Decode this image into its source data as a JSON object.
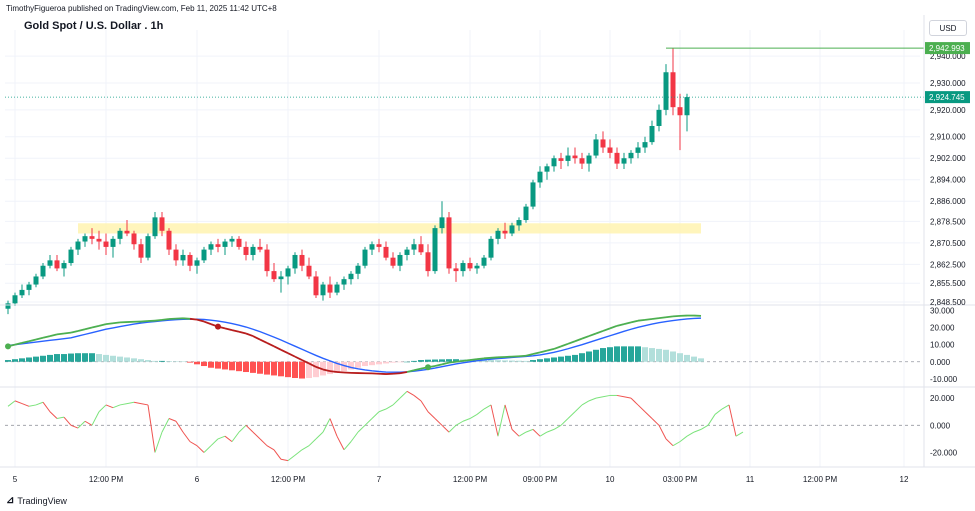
{
  "header": {
    "publisher_line": "TimothyFigueroa published on TradingView.com, Feb 11, 2025 11:42 UTC+8",
    "title": "Gold Spot / U.S. Dollar . 1h",
    "currency_button": "USD"
  },
  "footer": {
    "brand": "TradingView"
  },
  "colors": {
    "up": "#089981",
    "down": "#f23645",
    "grid": "#f0f3fa",
    "highlight": "#fff3b0",
    "macd_line": "#4caf50",
    "signal_line": "#2962ff",
    "macd_red_line": "#b71c1c",
    "osc_up": "#7be37b",
    "osc_down": "#ef5350"
  },
  "chart_data": [
    {
      "type": "candlestick",
      "title": "Gold Spot / U.S. Dollar . 1h",
      "ylim": [
        2848.5,
        2946
      ],
      "y_ticks": [
        "2,940.000",
        "2,930.000",
        "2,920.000",
        "2,910.000",
        "2,902.000",
        "2,894.000",
        "2,886.000",
        "2,878.500",
        "2,870.500",
        "2,862.500",
        "2,855.500",
        "2,848.500"
      ],
      "y_tick_values": [
        2940,
        2930,
        2920,
        2910,
        2902,
        2894,
        2886,
        2878.5,
        2870.5,
        2862.5,
        2855.5,
        2848.5
      ],
      "last_price_label": "2,924.745",
      "last_price": 2924.745,
      "high_label": "2,942.993",
      "high_price": 2942.993,
      "highlight_zone": {
        "from": 2874,
        "to": 2877.8,
        "start_index": 10,
        "end_index": 99
      },
      "ohlc": [
        [
          2846,
          2849,
          2844,
          2848
        ],
        [
          2848,
          2852,
          2847,
          2851
        ],
        [
          2851,
          2855,
          2850,
          2853
        ],
        [
          2853,
          2856,
          2851,
          2855
        ],
        [
          2855,
          2859,
          2854,
          2858
        ],
        [
          2858,
          2863,
          2857,
          2862
        ],
        [
          2862,
          2866,
          2861,
          2864
        ],
        [
          2864,
          2866,
          2860,
          2861
        ],
        [
          2861,
          2864,
          2858,
          2863
        ],
        [
          2863,
          2869,
          2862,
          2868
        ],
        [
          2868,
          2872,
          2866,
          2871
        ],
        [
          2871,
          2874,
          2869,
          2873
        ],
        [
          2873,
          2876,
          2870,
          2872
        ],
        [
          2872,
          2875,
          2868,
          2871
        ],
        [
          2871,
          2874,
          2866,
          2869
        ],
        [
          2869,
          2873,
          2865,
          2872
        ],
        [
          2872,
          2876,
          2870,
          2875
        ],
        [
          2875,
          2879,
          2873,
          2874
        ],
        [
          2874,
          2875,
          2868,
          2870
        ],
        [
          2870,
          2872,
          2863,
          2865
        ],
        [
          2865,
          2874,
          2864,
          2873
        ],
        [
          2873,
          2882,
          2872,
          2880
        ],
        [
          2880,
          2882,
          2873,
          2875
        ],
        [
          2875,
          2876,
          2866,
          2868
        ],
        [
          2868,
          2870,
          2862,
          2864
        ],
        [
          2864,
          2868,
          2862,
          2866
        ],
        [
          2866,
          2867,
          2860,
          2862
        ],
        [
          2862,
          2865,
          2859,
          2864
        ],
        [
          2864,
          2869,
          2863,
          2868
        ],
        [
          2868,
          2871,
          2866,
          2870
        ],
        [
          2870,
          2872,
          2867,
          2869
        ],
        [
          2869,
          2872,
          2866,
          2871
        ],
        [
          2871,
          2873,
          2869,
          2872
        ],
        [
          2872,
          2873,
          2868,
          2869
        ],
        [
          2869,
          2871,
          2864,
          2866
        ],
        [
          2866,
          2870,
          2864,
          2869
        ],
        [
          2869,
          2872,
          2867,
          2868
        ],
        [
          2868,
          2870,
          2858,
          2860
        ],
        [
          2860,
          2863,
          2856,
          2857
        ],
        [
          2857,
          2860,
          2852,
          2858
        ],
        [
          2858,
          2862,
          2855,
          2861
        ],
        [
          2861,
          2867,
          2859,
          2866
        ],
        [
          2866,
          2868,
          2860,
          2862
        ],
        [
          2862,
          2865,
          2857,
          2858
        ],
        [
          2858,
          2860,
          2850,
          2851
        ],
        [
          2851,
          2856,
          2849,
          2855
        ],
        [
          2855,
          2858,
          2850,
          2852
        ],
        [
          2852,
          2856,
          2851,
          2855
        ],
        [
          2855,
          2858,
          2853,
          2857
        ],
        [
          2857,
          2860,
          2855,
          2859
        ],
        [
          2859,
          2863,
          2857,
          2862
        ],
        [
          2862,
          2869,
          2861,
          2868
        ],
        [
          2868,
          2871,
          2866,
          2870
        ],
        [
          2870,
          2872,
          2867,
          2869
        ],
        [
          2869,
          2871,
          2864,
          2865
        ],
        [
          2865,
          2867,
          2861,
          2862
        ],
        [
          2862,
          2867,
          2860,
          2866
        ],
        [
          2866,
          2869,
          2864,
          2868
        ],
        [
          2868,
          2872,
          2866,
          2870
        ],
        [
          2870,
          2873,
          2866,
          2867
        ],
        [
          2867,
          2870,
          2858,
          2860
        ],
        [
          2860,
          2877,
          2859,
          2876
        ],
        [
          2876,
          2886,
          2874,
          2880
        ],
        [
          2880,
          2882,
          2859,
          2861
        ],
        [
          2861,
          2863,
          2856,
          2860
        ],
        [
          2860,
          2864,
          2858,
          2863
        ],
        [
          2863,
          2865,
          2860,
          2861
        ],
        [
          2861,
          2863,
          2859,
          2862
        ],
        [
          2862,
          2866,
          2861,
          2865
        ],
        [
          2865,
          2873,
          2864,
          2872
        ],
        [
          2872,
          2876,
          2870,
          2875
        ],
        [
          2875,
          2878,
          2872,
          2874
        ],
        [
          2874,
          2878,
          2873,
          2877
        ],
        [
          2877,
          2880,
          2875,
          2879
        ],
        [
          2879,
          2885,
          2878,
          2884
        ],
        [
          2884,
          2894,
          2883,
          2893
        ],
        [
          2893,
          2899,
          2891,
          2897
        ],
        [
          2897,
          2900,
          2894,
          2899
        ],
        [
          2899,
          2903,
          2897,
          2902
        ],
        [
          2902,
          2904,
          2898,
          2901
        ],
        [
          2901,
          2906,
          2899,
          2903
        ],
        [
          2903,
          2906,
          2900,
          2902
        ],
        [
          2902,
          2904,
          2898,
          2900
        ],
        [
          2900,
          2904,
          2897,
          2903
        ],
        [
          2903,
          2911,
          2902,
          2909
        ],
        [
          2909,
          2912,
          2904,
          2906
        ],
        [
          2906,
          2909,
          2902,
          2904
        ],
        [
          2904,
          2906,
          2898,
          2900
        ],
        [
          2900,
          2904,
          2898,
          2902
        ],
        [
          2902,
          2905,
          2900,
          2904
        ],
        [
          2904,
          2908,
          2902,
          2906
        ],
        [
          2906,
          2910,
          2904,
          2908
        ],
        [
          2908,
          2916,
          2907,
          2914
        ],
        [
          2914,
          2922,
          2912,
          2920
        ],
        [
          2920,
          2937,
          2918,
          2934
        ],
        [
          2934,
          2943,
          2918,
          2921
        ],
        [
          2921,
          2926,
          2905,
          2918
        ],
        [
          2918,
          2926,
          2912,
          2924.745
        ]
      ]
    },
    {
      "type": "line",
      "name_hidden": true,
      "ylim": [
        -13,
        32
      ],
      "y_ticks": [
        "30.000",
        "20.000",
        "10.000",
        "0.000",
        "-10.000"
      ],
      "y_tick_values": [
        30,
        20,
        10,
        0,
        -10
      ],
      "series": [
        {
          "values": [
            9,
            10,
            11,
            12,
            13,
            14,
            15,
            16,
            16.5,
            17,
            18,
            19,
            20,
            21,
            22,
            22.5,
            23,
            23.2,
            23.4,
            23.5,
            23.8,
            24,
            24.5,
            25,
            25.2,
            25.4,
            25.1,
            24.6,
            23.5,
            22,
            20.5,
            19.5,
            18.5,
            17.5,
            16.5,
            15,
            13,
            11,
            9,
            7,
            5,
            3,
            1,
            -1,
            -3,
            -4.5,
            -5.5,
            -6,
            -6.3,
            -6.5,
            -6.6,
            -6.7,
            -6.8,
            -7,
            -7.2,
            -7,
            -6.7,
            -6,
            -5,
            -4,
            -3.2,
            -2.5,
            -1.5,
            -0.5,
            0,
            0.5,
            1,
            1.5,
            2,
            2.3,
            2.6,
            2.8,
            3,
            3.2,
            3.5,
            4.5,
            5.5,
            6.5,
            7.5,
            9,
            10.5,
            12,
            13.5,
            15,
            16.5,
            18,
            19.5,
            21,
            22,
            23,
            24,
            24.5,
            25,
            25.5,
            26,
            26.5,
            26.8,
            27,
            27,
            26.8
          ]
        },
        {
          "values": [
            9.5,
            10,
            10.5,
            11,
            11.5,
            12,
            12.5,
            13,
            13.5,
            14,
            15,
            16,
            17,
            18,
            19,
            19.8,
            20.6,
            21.3,
            22,
            22.6,
            23.1,
            23.5,
            23.9,
            24.3,
            24.6,
            24.8,
            24.9,
            24.9,
            24.7,
            24.3,
            23.8,
            23.1,
            22.3,
            21.4,
            20.3,
            19,
            17.6,
            16,
            14.4,
            12.7,
            10.9,
            9.1,
            7.3,
            5.5,
            3.7,
            2,
            0.5,
            -1,
            -2.2,
            -3.3,
            -4.1,
            -4.8,
            -5.3,
            -5.7,
            -6,
            -6.1,
            -6.1,
            -5.9,
            -5.5,
            -5,
            -4.4,
            -3.7,
            -2.9,
            -2.1,
            -1.3,
            -0.6,
            0,
            0.6,
            1.1,
            1.5,
            1.9,
            2.2,
            2.5,
            2.8,
            3.1,
            3.5,
            4,
            4.7,
            5.5,
            6.5,
            7.6,
            8.8,
            10,
            11.3,
            12.6,
            13.9,
            15.2,
            16.5,
            17.8,
            19,
            20.1,
            21.1,
            22,
            22.8,
            23.5,
            24.1,
            24.6,
            25,
            25.3,
            25.5
          ]
        }
      ],
      "histogram": [
        1,
        1.5,
        2,
        2.5,
        3,
        3.5,
        4,
        4.5,
        4.5,
        4.8,
        5,
        5,
        5,
        4.5,
        4,
        3.5,
        3,
        2.5,
        2,
        1.5,
        1,
        0.5,
        0.5,
        0.4,
        0.3,
        0.2,
        -0.5,
        -1.5,
        -2.5,
        -3.5,
        -4,
        -4.5,
        -5,
        -5.5,
        -6,
        -6.5,
        -7,
        -7.5,
        -8,
        -8.5,
        -9,
        -9.5,
        -9.8,
        -9.5,
        -9,
        -8,
        -7.2,
        -6.5,
        -5.5,
        -4.5,
        -3.5,
        -2.5,
        -2,
        -1.5,
        -1,
        -0.5,
        -0.3,
        0,
        0.5,
        1,
        1.2,
        1.3,
        1.4,
        1.5,
        1.5,
        1.4,
        1.3,
        1.2,
        1.1,
        1,
        0.9,
        0.8,
        0.7,
        0.6,
        0.5,
        1,
        1.5,
        2,
        2.5,
        3,
        3.5,
        4,
        5,
        6,
        7,
        8,
        8.5,
        9,
        9,
        9,
        9,
        8.5,
        8,
        7.5,
        7,
        6,
        5,
        4,
        3,
        2
      ]
    },
    {
      "type": "line",
      "name_hidden": true,
      "ylim": [
        -27,
        26
      ],
      "y_ticks": [
        "20.000",
        "0.000",
        "-20.000"
      ],
      "y_tick_values": [
        20,
        0,
        -20
      ],
      "series": [
        {
          "values": [
            14,
            18,
            16,
            14,
            15,
            17,
            10,
            5,
            6,
            0,
            -2,
            3,
            0,
            10,
            15,
            13,
            15,
            16,
            17,
            16,
            15,
            -20,
            -5,
            5,
            3,
            -5,
            -12,
            -15,
            -20,
            -15,
            -10,
            -8,
            -12,
            -5,
            0,
            -5,
            -10,
            -15,
            -18,
            -25,
            -26,
            -22,
            -18,
            -15,
            -10,
            -5,
            5,
            -8,
            -18,
            -12,
            -5,
            0,
            5,
            10,
            12,
            15,
            20,
            25,
            22,
            18,
            10,
            5,
            0,
            -5,
            0,
            3,
            5,
            8,
            12,
            15,
            -8,
            15,
            -3,
            -8,
            -5,
            -3,
            -8,
            -5,
            -3,
            0,
            5,
            10,
            15,
            18,
            20,
            21,
            22,
            22,
            21,
            20,
            15,
            10,
            5,
            0,
            -10,
            -15,
            -12,
            -8,
            -5,
            -3,
            0,
            8,
            12,
            15,
            -8,
            -5
          ]
        }
      ]
    }
  ],
  "x_axis": {
    "labels": [
      "5",
      "12:00 PM",
      "6",
      "12:00 PM",
      "7",
      "12:00 PM",
      "09:00 PM",
      "10",
      "03:00 PM",
      "11",
      "12:00 PM",
      "12",
      "12:00 PM"
    ],
    "label_indices": [
      1,
      14,
      27,
      40,
      53,
      66,
      76,
      86,
      96,
      106,
      116,
      128,
      141
    ]
  }
}
